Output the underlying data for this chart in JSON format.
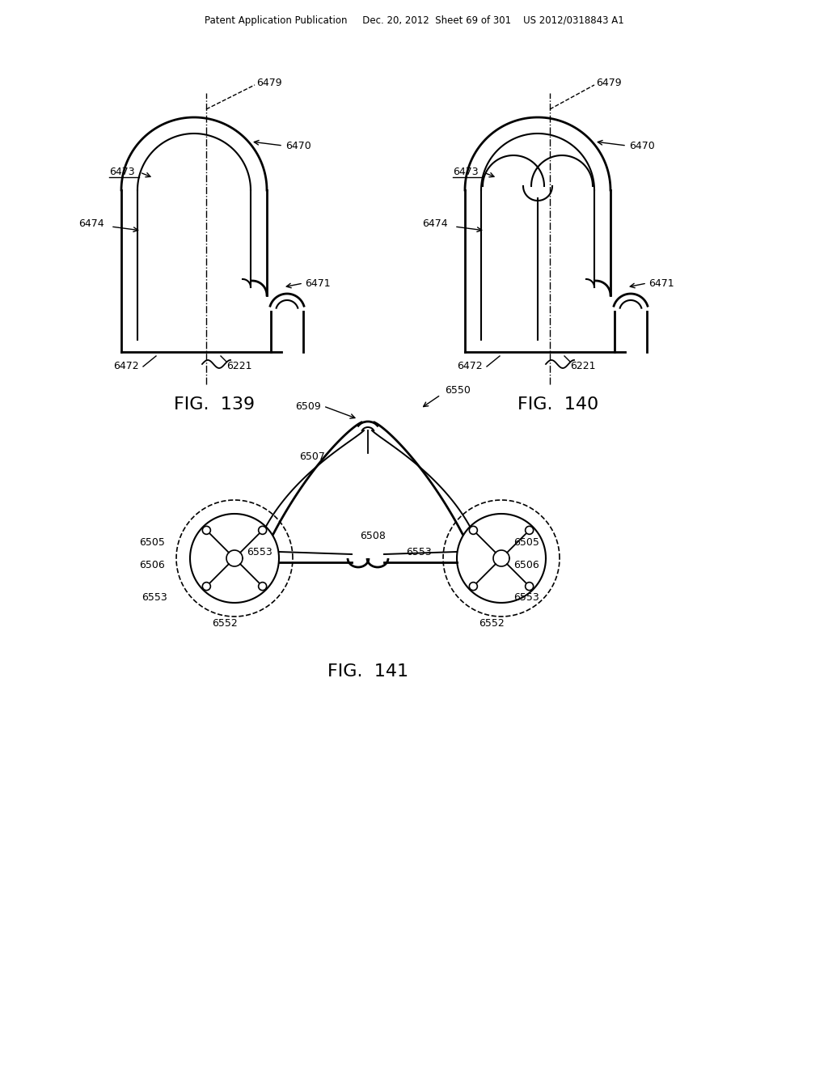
{
  "bg_color": "#ffffff",
  "header_text": "Patent Application Publication     Dec. 20, 2012  Sheet 69 of 301    US 2012/0318843 A1",
  "fig139_caption": "FIG.  139",
  "fig140_caption": "FIG.  140",
  "fig141_caption": "FIG.  141",
  "line_color": "#000000",
  "text_color": "#000000"
}
